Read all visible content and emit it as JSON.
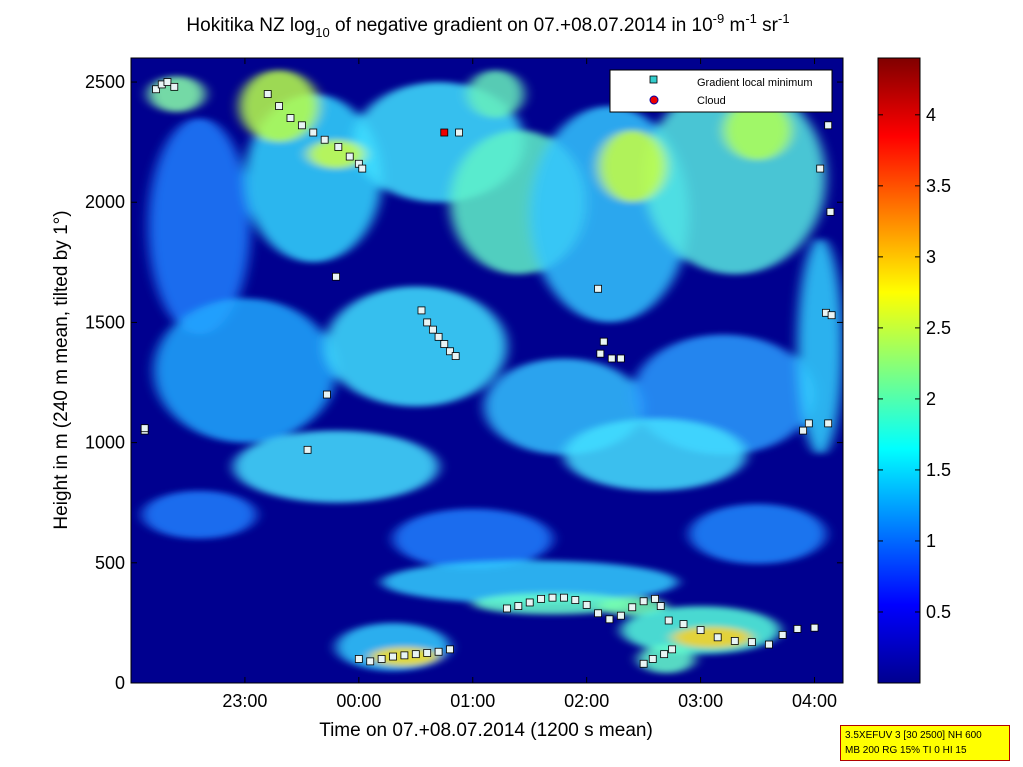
{
  "chart_data": {
    "type": "heatmap",
    "title_parts": {
      "main": "Hokitika NZ log",
      "sub": "10",
      "rest": " of negative gradient on 07.+08.07.2014 in 10",
      "sup1": "-9",
      "mid": " m",
      "sup2": "-1",
      "end": " sr",
      "sup3": "-1"
    },
    "xlabel": "Time on 07.+08.07.2014 (1200 s mean)",
    "ylabel": "Height in m (240 m mean, tilted by 1°)",
    "x_ticks": [
      "23:00",
      "00:00",
      "01:00",
      "02:00",
      "03:00",
      "04:00"
    ],
    "x_tick_hours": [
      23,
      24,
      25,
      26,
      27,
      28
    ],
    "xlim_hours": [
      22.0,
      28.25
    ],
    "y_ticks": [
      "0",
      "500",
      "1000",
      "1500",
      "2000",
      "2500"
    ],
    "y_tick_values": [
      0,
      500,
      1000,
      1500,
      2000,
      2500
    ],
    "ylim": [
      0,
      2600
    ],
    "colorbar": {
      "ticks": [
        "0.5",
        "1",
        "1.5",
        "2",
        "2.5",
        "3",
        "3.5",
        "4"
      ],
      "tick_values": [
        0.5,
        1,
        1.5,
        2,
        2.5,
        3,
        3.5,
        4
      ],
      "range": [
        0,
        4.4
      ]
    },
    "legend": {
      "position": "top-right",
      "entries": [
        "Gradient local minimum",
        "Cloud"
      ]
    },
    "gradient_local_minimum": [
      [
        22.12,
        1050
      ],
      [
        22.12,
        1060
      ],
      [
        22.22,
        2470
      ],
      [
        22.27,
        2490
      ],
      [
        22.32,
        2500
      ],
      [
        22.38,
        2480
      ],
      [
        23.2,
        2450
      ],
      [
        23.3,
        2400
      ],
      [
        23.4,
        2350
      ],
      [
        23.5,
        2320
      ],
      [
        23.6,
        2290
      ],
      [
        23.7,
        2260
      ],
      [
        23.82,
        2230
      ],
      [
        23.92,
        2190
      ],
      [
        24.0,
        2160
      ],
      [
        24.03,
        2140
      ],
      [
        23.55,
        970
      ],
      [
        23.8,
        1690
      ],
      [
        23.72,
        1200
      ],
      [
        24.55,
        1550
      ],
      [
        24.6,
        1500
      ],
      [
        24.65,
        1470
      ],
      [
        24.7,
        1440
      ],
      [
        24.75,
        1410
      ],
      [
        24.8,
        1380
      ],
      [
        24.85,
        1360
      ],
      [
        24.88,
        2290
      ],
      [
        24.0,
        100
      ],
      [
        24.1,
        90
      ],
      [
        24.2,
        100
      ],
      [
        24.3,
        110
      ],
      [
        24.4,
        115
      ],
      [
        24.5,
        120
      ],
      [
        24.6,
        125
      ],
      [
        24.7,
        130
      ],
      [
        24.8,
        140
      ],
      [
        25.3,
        310
      ],
      [
        25.4,
        320
      ],
      [
        25.5,
        335
      ],
      [
        25.6,
        350
      ],
      [
        25.7,
        355
      ],
      [
        25.8,
        355
      ],
      [
        25.9,
        345
      ],
      [
        26.0,
        325
      ],
      [
        26.1,
        290
      ],
      [
        26.2,
        265
      ],
      [
        26.3,
        280
      ],
      [
        26.4,
        315
      ],
      [
        26.5,
        340
      ],
      [
        26.6,
        350
      ],
      [
        26.65,
        320
      ],
      [
        26.1,
        1640
      ],
      [
        26.15,
        1420
      ],
      [
        26.12,
        1370
      ],
      [
        26.22,
        1350
      ],
      [
        26.3,
        1350
      ],
      [
        26.5,
        80
      ],
      [
        26.58,
        100
      ],
      [
        26.68,
        120
      ],
      [
        26.75,
        140
      ],
      [
        26.72,
        260
      ],
      [
        26.85,
        245
      ],
      [
        27.0,
        220
      ],
      [
        27.15,
        190
      ],
      [
        27.3,
        175
      ],
      [
        27.45,
        170
      ],
      [
        27.6,
        160
      ],
      [
        27.72,
        200
      ],
      [
        27.85,
        225
      ],
      [
        28.0,
        230
      ],
      [
        27.9,
        1050
      ],
      [
        27.95,
        1080
      ],
      [
        28.12,
        1080
      ],
      [
        28.05,
        2140
      ],
      [
        28.1,
        1540
      ],
      [
        28.15,
        1530
      ],
      [
        28.12,
        2320
      ],
      [
        28.14,
        1960
      ]
    ],
    "cloud": [
      [
        24.75,
        2290
      ]
    ]
  },
  "info_box": {
    "line1": "3.5XEFUV 3 [30 2500] NH 600",
    "line2": "MB 200 RG 15% TI 0 HI 15"
  }
}
